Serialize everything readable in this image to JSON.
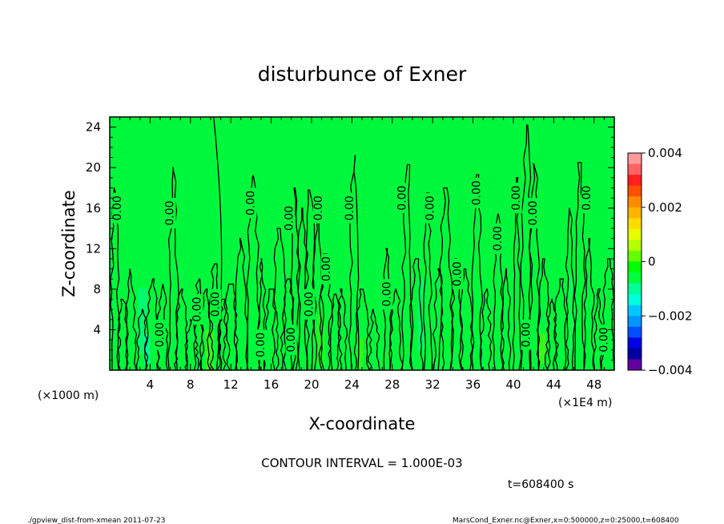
{
  "chart_data": {
    "type": "heatmap",
    "title": "disturbunce of Exner",
    "xlabel": "X-coordinate",
    "ylabel": "Z-coordinate",
    "xlim": [
      0,
      50
    ],
    "ylim": [
      0,
      25
    ],
    "x_ticks": [
      4,
      8,
      12,
      16,
      20,
      24,
      28,
      32,
      36,
      40,
      44,
      48
    ],
    "y_ticks": [
      4,
      8,
      12,
      16,
      20,
      24
    ],
    "z_unit_label": "(×1000 m)",
    "x_unit_label": "(×1E4 m)",
    "contour_interval_text": "CONTOUR INTERVAL = 1.000E-03",
    "time_text": "t=608400 s",
    "contour_labels": [
      {
        "x": 0.8,
        "z": 16,
        "text": "0.00"
      },
      {
        "x": 6.0,
        "z": 15.5,
        "text": "0.00"
      },
      {
        "x": 14.0,
        "z": 16.5,
        "text": "0.00"
      },
      {
        "x": 17.8,
        "z": 15,
        "text": "0.00"
      },
      {
        "x": 20.7,
        "z": 16,
        "text": "0.00"
      },
      {
        "x": 23.8,
        "z": 16,
        "text": "0.00"
      },
      {
        "x": 29.0,
        "z": 17,
        "text": "0.00"
      },
      {
        "x": 31.8,
        "z": 16,
        "text": "0.00"
      },
      {
        "x": 36.4,
        "z": 17.5,
        "text": "0.00"
      },
      {
        "x": 40.3,
        "z": 17,
        "text": "0.00"
      },
      {
        "x": 42.0,
        "z": 15.5,
        "text": "0.00"
      },
      {
        "x": 47.3,
        "z": 17,
        "text": "0.00"
      },
      {
        "x": 38.5,
        "z": 13,
        "text": "0.00"
      },
      {
        "x": 34.5,
        "z": 9.5,
        "text": "0.00"
      },
      {
        "x": 21.5,
        "z": 10,
        "text": "0.00"
      },
      {
        "x": 27.5,
        "z": 7.5,
        "text": "0.00"
      },
      {
        "x": 19.8,
        "z": 6.5,
        "text": "0.00"
      },
      {
        "x": 10.5,
        "z": 6.5,
        "text": "0.00"
      },
      {
        "x": 8.7,
        "z": 6.0,
        "text": "0.00"
      },
      {
        "x": 5.0,
        "z": 3.5,
        "text": "0.00"
      },
      {
        "x": 18.0,
        "z": 3.0,
        "text": "0.00"
      },
      {
        "x": 15.0,
        "z": 2.5,
        "text": "0.00"
      },
      {
        "x": 41.3,
        "z": 3.5,
        "text": "0.00"
      },
      {
        "x": 49.0,
        "z": 3.0,
        "text": "0.00"
      }
    ],
    "colorbar": {
      "min": -0.004,
      "max": 0.004,
      "tick_labels": [
        "0.004",
        "0.002",
        "0",
        "−0.002",
        "−0.004"
      ],
      "colors_top_to_bottom": [
        "#ff9a9a",
        "#ff6464",
        "#ff2020",
        "#ff5000",
        "#ff8c00",
        "#ffb400",
        "#ffdc00",
        "#e6ff00",
        "#b4ff00",
        "#64ff00",
        "#00ff00",
        "#00ff3c",
        "#00ff96",
        "#00ffdc",
        "#00c8ff",
        "#0096ff",
        "#0050ff",
        "#0000e6",
        "#0000a0",
        "#6400a0"
      ]
    }
  },
  "footer": {
    "left": "./gpview_dist-from-xmean  2011-07-23",
    "right": "MarsCond_Exner.nc@Exner,x=0:500000,z=0:25000,t=608400"
  }
}
